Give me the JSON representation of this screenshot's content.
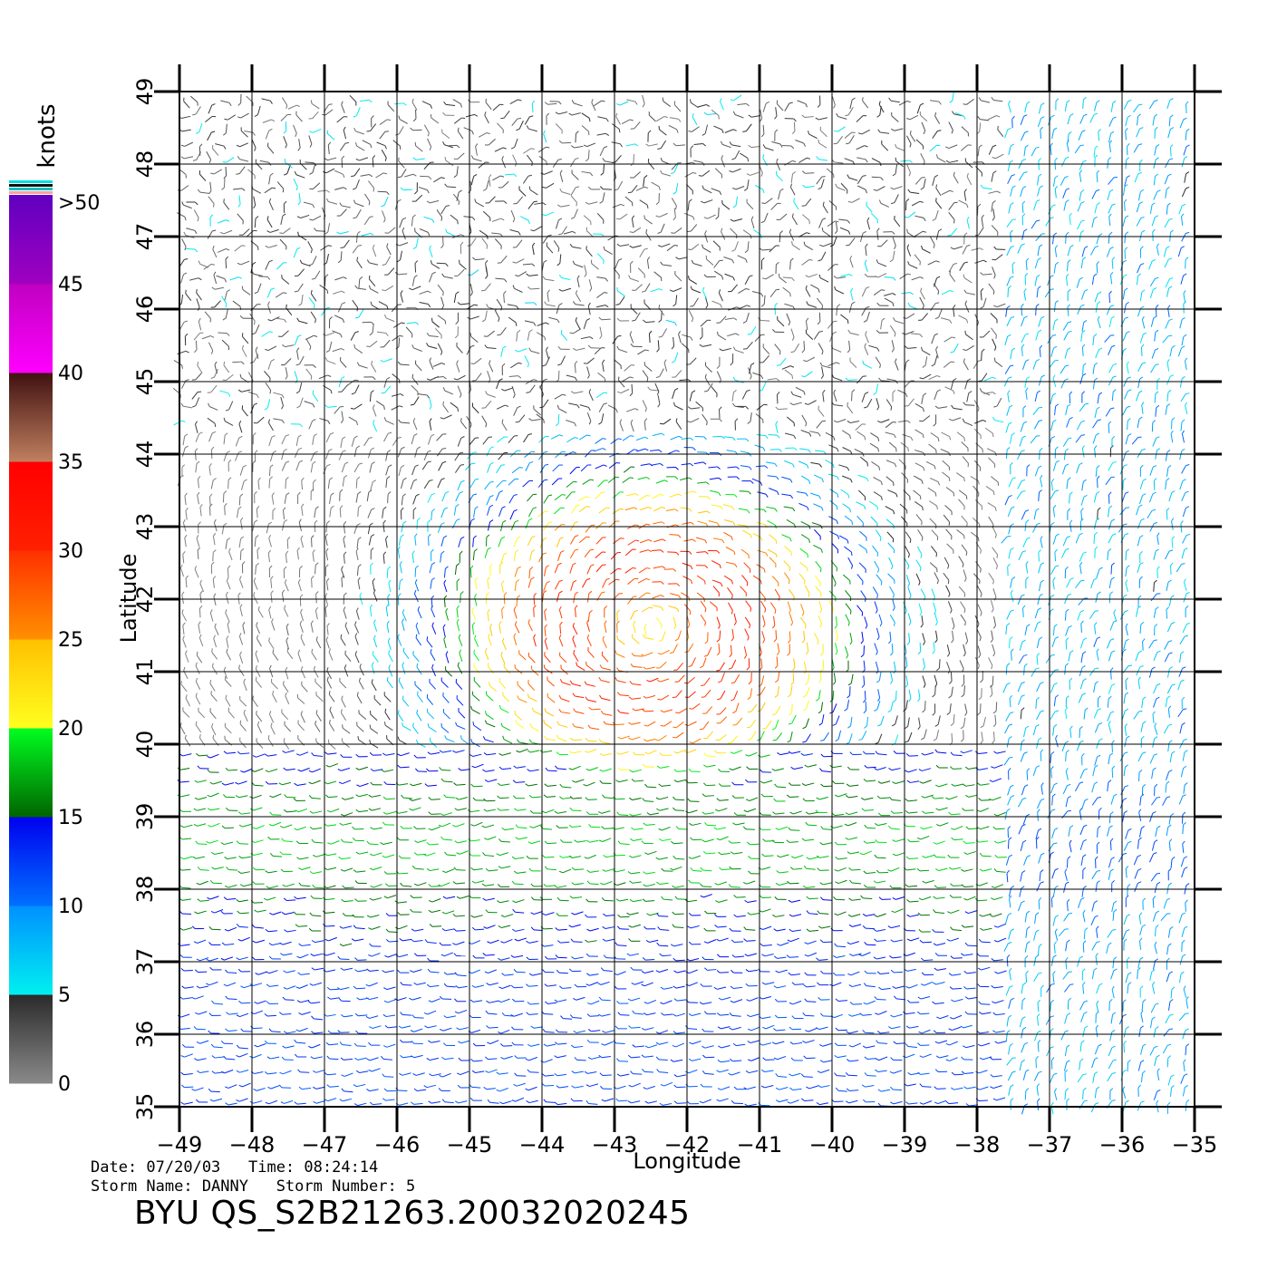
{
  "chart_data": {
    "type": "scatter",
    "subtype": "wind-vector-field",
    "xlabel": "Longitude",
    "ylabel": "Latitude",
    "xlim": [
      -49,
      -35
    ],
    "ylim": [
      35,
      49
    ],
    "x_ticks": [
      -49,
      -48,
      -47,
      -46,
      -45,
      -44,
      -43,
      -42,
      -41,
      -40,
      -39,
      -38,
      -37,
      -36,
      -35
    ],
    "y_ticks": [
      35,
      36,
      37,
      38,
      39,
      40,
      41,
      42,
      43,
      44,
      45,
      46,
      47,
      48,
      49
    ],
    "grid": true,
    "storm_center": {
      "lon": -42.5,
      "lat": 41.6
    },
    "colorbar": {
      "title": "knots",
      "tick_labels": [
        "0",
        "5",
        "10",
        "15",
        "20",
        "25",
        "30",
        "35",
        "40",
        "45",
        ">50"
      ],
      "bands": [
        {
          "from": 0,
          "to": 5,
          "colors": [
            "#8a8a8a",
            "#2a2a2a"
          ]
        },
        {
          "from": 5,
          "to": 10,
          "colors": [
            "#00f0f0",
            "#0090ff"
          ]
        },
        {
          "from": 10,
          "to": 15,
          "colors": [
            "#0070ff",
            "#0000ee"
          ]
        },
        {
          "from": 15,
          "to": 20,
          "colors": [
            "#006400",
            "#00ff20"
          ]
        },
        {
          "from": 20,
          "to": 25,
          "colors": [
            "#ffff20",
            "#ffc000"
          ]
        },
        {
          "from": 25,
          "to": 30,
          "colors": [
            "#ff9000",
            "#ff3000"
          ]
        },
        {
          "from": 30,
          "to": 35,
          "colors": [
            "#ff2000",
            "#ff0000"
          ]
        },
        {
          "from": 35,
          "to": 40,
          "colors": [
            "#c08060",
            "#401010"
          ]
        },
        {
          "from": 40,
          "to": 45,
          "colors": [
            "#ff00ff",
            "#c000c0"
          ]
        },
        {
          "from": 45,
          "to": 50,
          "colors": [
            "#a000c0",
            "#6000c0"
          ]
        }
      ],
      "top_stripes": [
        "#ffa0a0",
        "#00c0c0",
        "#101010",
        "#00e0e0"
      ]
    }
  },
  "footer": {
    "line1": "Date: 07/20/03   Time: 08:24:14",
    "line2": "Storm Name: DANNY   Storm Number: 5",
    "id": "BYU QS_S2B21263.20032020245"
  }
}
